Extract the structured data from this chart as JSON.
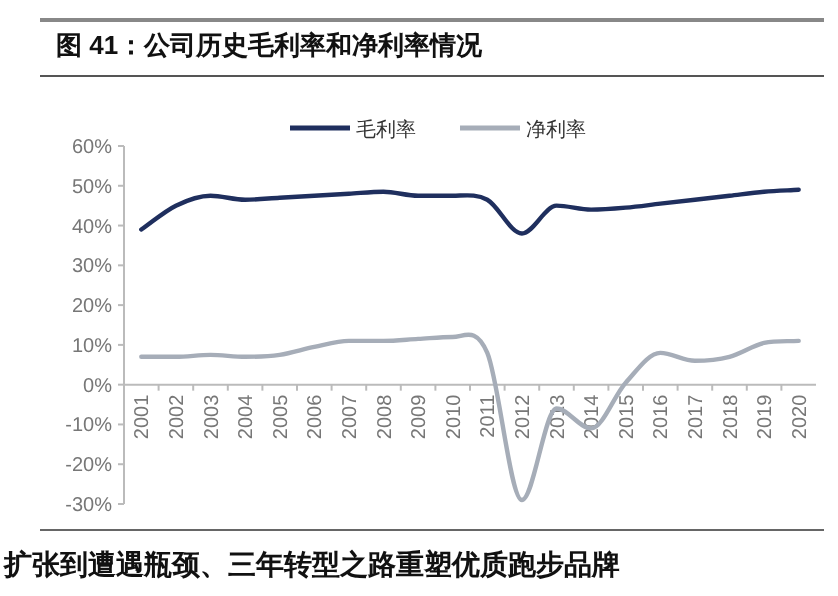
{
  "chart_data": {
    "type": "line",
    "title": "图 41：公司历史毛利率和净利率情况",
    "categories": [
      "2001",
      "2002",
      "2003",
      "2004",
      "2005",
      "2006",
      "2007",
      "2008",
      "2009",
      "2010",
      "2011",
      "2012",
      "2013",
      "2014",
      "2015",
      "2016",
      "2017",
      "2018",
      "2019",
      "2020"
    ],
    "series": [
      {
        "name": "毛利率",
        "color": "#1f2f5e",
        "values": [
          39,
          45,
          47.5,
          46.5,
          47,
          47.5,
          48,
          48.5,
          47.5,
          47.5,
          46.5,
          38,
          45,
          44,
          44.5,
          45.5,
          46.5,
          47.5,
          48.5,
          49
        ]
      },
      {
        "name": "净利率",
        "color": "#a6adb8",
        "values": [
          7,
          7,
          7.5,
          7,
          7.5,
          9.5,
          11,
          11,
          11.5,
          12,
          8,
          -29,
          -6,
          -11,
          0.5,
          8,
          6,
          7,
          10.5,
          11
        ]
      }
    ],
    "ylim": [
      -30,
      60
    ],
    "yticks": [
      {
        "value": -30,
        "label": "-30%"
      },
      {
        "value": -20,
        "label": "-20%"
      },
      {
        "value": -10,
        "label": "-10%"
      },
      {
        "value": 0,
        "label": "0%"
      },
      {
        "value": 10,
        "label": "10%"
      },
      {
        "value": 20,
        "label": "20%"
      },
      {
        "value": 30,
        "label": "30%"
      },
      {
        "value": 40,
        "label": "40%"
      },
      {
        "value": 50,
        "label": "50%"
      },
      {
        "value": 60,
        "label": "60%"
      }
    ],
    "legend": "top",
    "grid": false,
    "marker": "none",
    "line_style": "solid",
    "annotations": [
      "扩张到遭遇瓶颈、三年转型之路重塑优质跑步品牌"
    ]
  }
}
